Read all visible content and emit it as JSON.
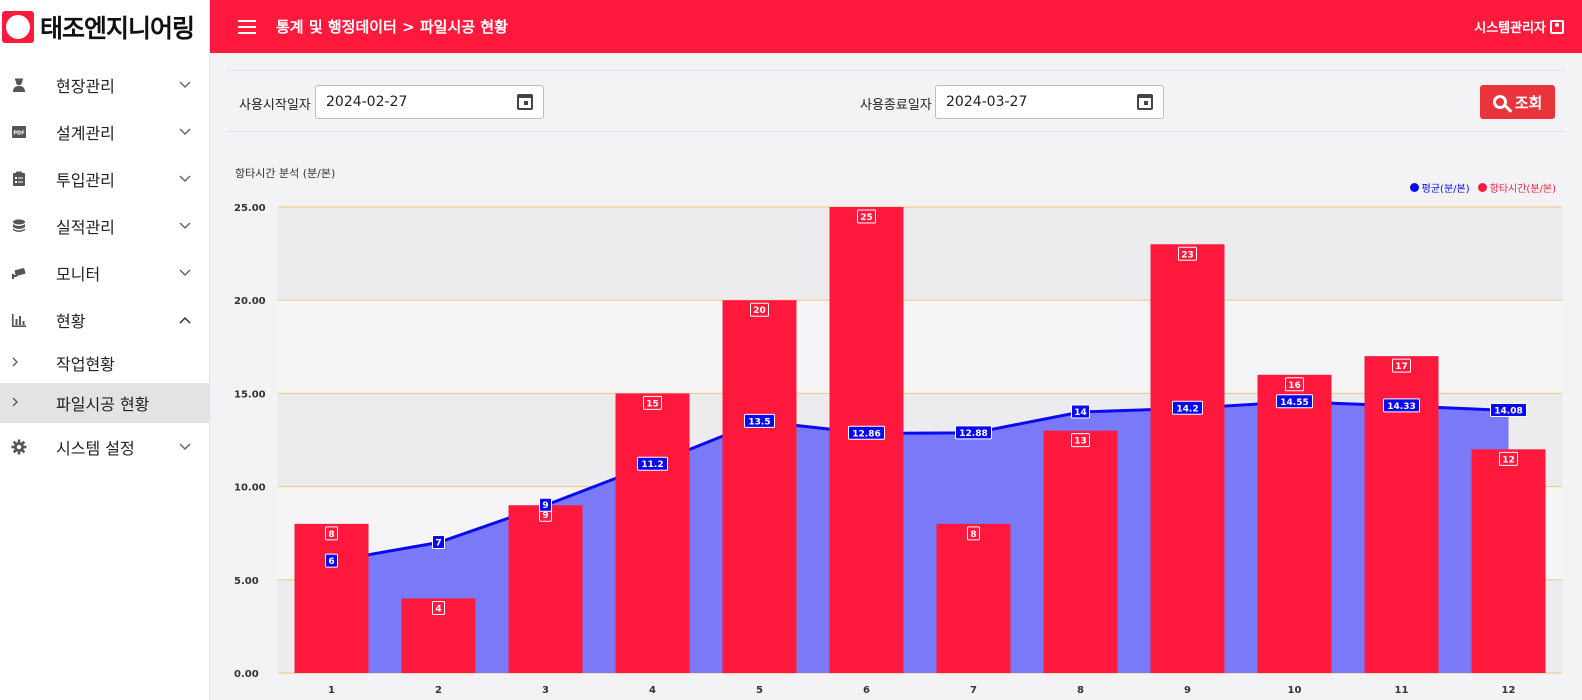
{
  "brand": {
    "name": "태조엔지니어링"
  },
  "header": {
    "breadcrumb": "통계 및 행정데이터 > 파일시공 현황",
    "user": "시스템관리자"
  },
  "sidebar": {
    "items": [
      {
        "label": "현장관리",
        "icon": "worker-icon",
        "expanded": false
      },
      {
        "label": "설계관리",
        "icon": "pdf-icon",
        "expanded": false
      },
      {
        "label": "투입관리",
        "icon": "clipboard-icon",
        "expanded": false
      },
      {
        "label": "실적관리",
        "icon": "database-icon",
        "expanded": false
      },
      {
        "label": "모니터",
        "icon": "cctv-icon",
        "expanded": false
      },
      {
        "label": "현황",
        "icon": "bar-chart-icon",
        "expanded": true
      },
      {
        "label": "시스템 설정",
        "icon": "gear-icon",
        "expanded": false
      }
    ],
    "sub_items": [
      {
        "label": "작업현황",
        "active": false
      },
      {
        "label": "파일시공 현황",
        "active": true
      }
    ]
  },
  "filter": {
    "start_label": "사용시작일자",
    "start_value": "2024-02-27",
    "end_label": "사용종료일자",
    "end_value": "2024-03-27",
    "search_label": "조회"
  },
  "chart_data": {
    "type": "bar",
    "title": "항타시간 분석 (분/본)",
    "categories": [
      "1",
      "2",
      "3",
      "4",
      "5",
      "6",
      "7",
      "8",
      "9",
      "10",
      "11",
      "12"
    ],
    "ylim": [
      0,
      25
    ],
    "yticks": [
      "0.00",
      "5.00",
      "10.00",
      "15.00",
      "20.00",
      "25.00"
    ],
    "legend_position": "top-right",
    "series": [
      {
        "name": "평균(분/본)",
        "type": "area",
        "color": "#0a0af0",
        "values": [
          6,
          7,
          9,
          11.2,
          13.5,
          12.86,
          12.88,
          14,
          14.2,
          14.55,
          14.33,
          14.08
        ]
      },
      {
        "name": "항타시간(분/본)",
        "type": "bar",
        "color": "#ff1a3d",
        "values": [
          8,
          4,
          9,
          15,
          20,
          25,
          8,
          13,
          23,
          16,
          17,
          12
        ]
      }
    ]
  }
}
